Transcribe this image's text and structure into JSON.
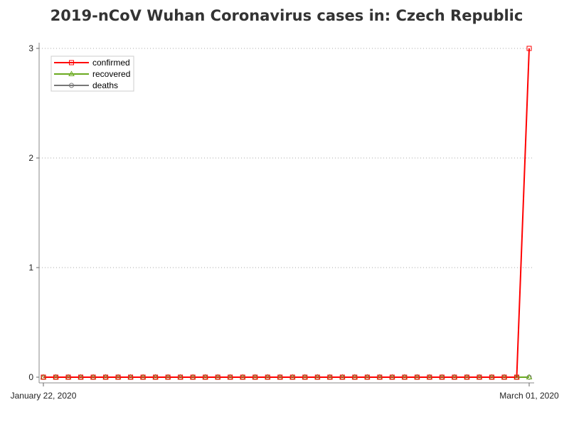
{
  "chart_data": {
    "type": "line",
    "title": "2019-nCoV Wuhan Coronavirus cases in: Czech Republic",
    "xlabel": "",
    "ylabel": "",
    "x_start": "January 22, 2020",
    "x_end": "March 01, 2020",
    "x_tick_labels": [
      "January 22, 2020",
      "March 01, 2020"
    ],
    "y_ticks": [
      0,
      1,
      2,
      3
    ],
    "ylim": [
      0,
      3
    ],
    "grid": "horizontal dotted",
    "legend_position": "top-left",
    "series": [
      {
        "name": "confirmed",
        "color": "#ff0000",
        "marker": "square",
        "values": [
          0,
          0,
          0,
          0,
          0,
          0,
          0,
          0,
          0,
          0,
          0,
          0,
          0,
          0,
          0,
          0,
          0,
          0,
          0,
          0,
          0,
          0,
          0,
          0,
          0,
          0,
          0,
          0,
          0,
          0,
          0,
          0,
          0,
          0,
          0,
          0,
          0,
          0,
          0,
          3
        ]
      },
      {
        "name": "recovered",
        "color": "#6aaa1f",
        "marker": "triangle",
        "values": [
          0,
          0,
          0,
          0,
          0,
          0,
          0,
          0,
          0,
          0,
          0,
          0,
          0,
          0,
          0,
          0,
          0,
          0,
          0,
          0,
          0,
          0,
          0,
          0,
          0,
          0,
          0,
          0,
          0,
          0,
          0,
          0,
          0,
          0,
          0,
          0,
          0,
          0,
          0,
          0
        ]
      },
      {
        "name": "deaths",
        "color": "#777777",
        "marker": "circle",
        "values": [
          0,
          0,
          0,
          0,
          0,
          0,
          0,
          0,
          0,
          0,
          0,
          0,
          0,
          0,
          0,
          0,
          0,
          0,
          0,
          0,
          0,
          0,
          0,
          0,
          0,
          0,
          0,
          0,
          0,
          0,
          0,
          0,
          0,
          0,
          0,
          0,
          0,
          0,
          0,
          0
        ]
      }
    ]
  }
}
